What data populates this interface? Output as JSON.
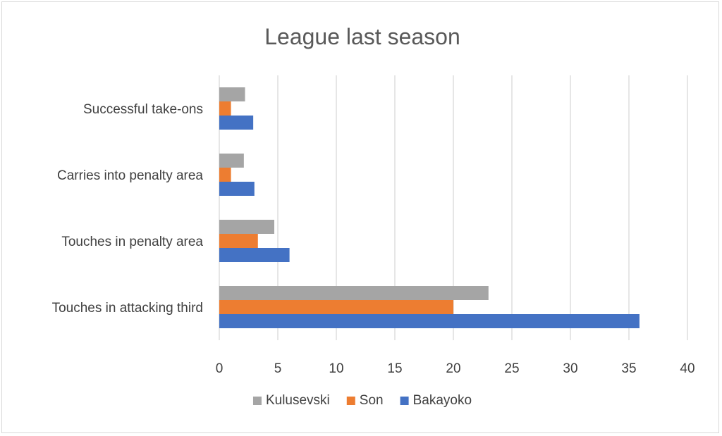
{
  "chart_data": {
    "type": "bar",
    "orientation": "horizontal",
    "title": "League last season",
    "categories": [
      "Touches in attacking third",
      "Touches in penalty area",
      "Carries into penalty area",
      "Successful take-ons"
    ],
    "series": [
      {
        "name": "Bakayoko",
        "color": "#4472c4",
        "values": [
          35.9,
          6.0,
          3.0,
          2.9
        ]
      },
      {
        "name": "Son",
        "color": "#ed7d31",
        "values": [
          20.0,
          3.3,
          1.0,
          1.0
        ]
      },
      {
        "name": "Kulusevski",
        "color": "#a5a5a5",
        "values": [
          23.0,
          4.7,
          2.1,
          2.2
        ]
      }
    ],
    "xlim": [
      0,
      40
    ],
    "xticks": [
      "0",
      "5",
      "10",
      "15",
      "20",
      "25",
      "30",
      "35",
      "40"
    ],
    "grid": true,
    "legend_position": "bottom",
    "legend_order": [
      "Kulusevski",
      "Son",
      "Bakayoko"
    ]
  }
}
